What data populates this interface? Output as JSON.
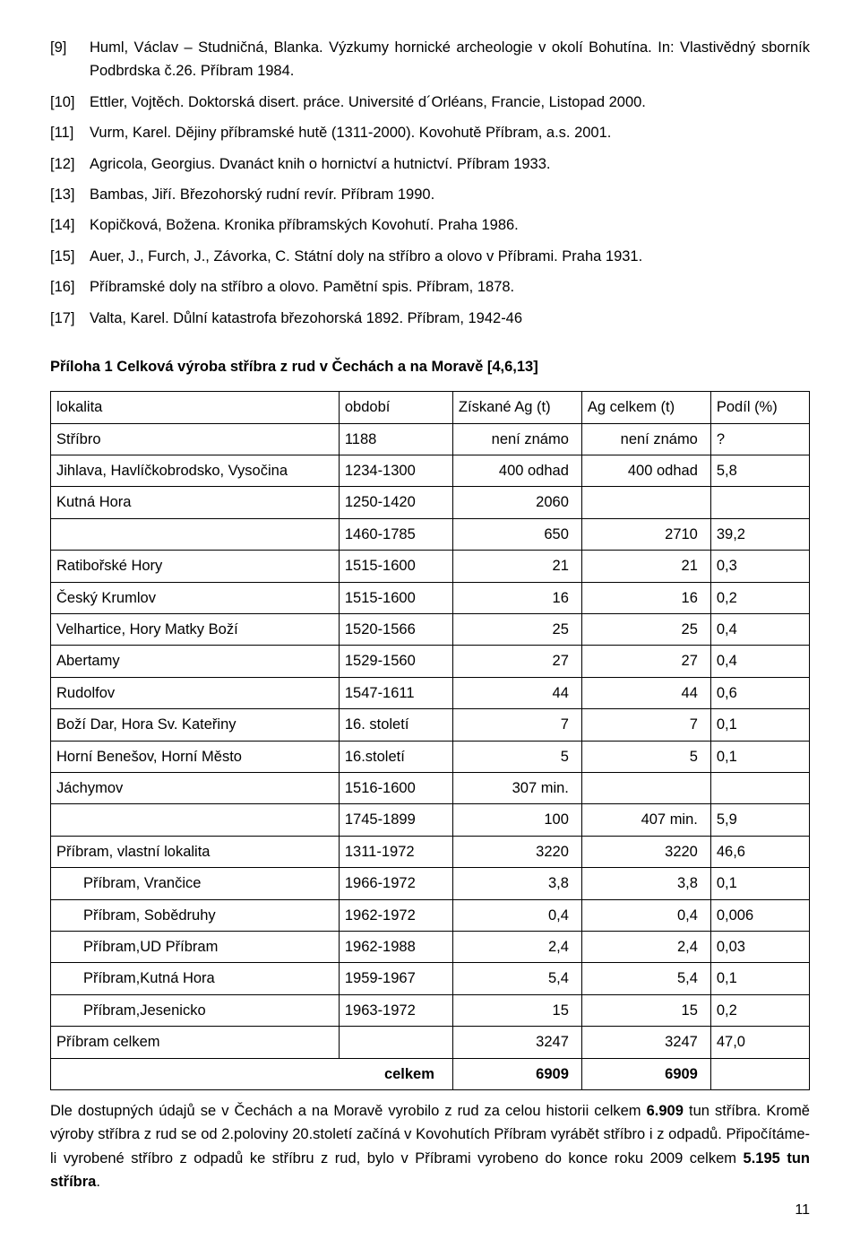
{
  "refs": [
    {
      "num": "[9]",
      "text": "Huml, Václav – Studničná, Blanka. Výzkumy hornické archeologie v okolí Bohutína. In: Vlastivědný sborník Podbrdska č.26. Příbram 1984."
    },
    {
      "num": "[10]",
      "text": "Ettler, Vojtěch. Doktorská disert. práce. Université d´Orléans, Francie, Listopad 2000."
    },
    {
      "num": "[11]",
      "text": "Vurm, Karel. Dějiny příbramské hutě (1311-2000). Kovohutě Příbram, a.s. 2001."
    },
    {
      "num": "[12]",
      "text": "Agricola, Georgius. Dvanáct knih o hornictví a hutnictví. Příbram 1933."
    },
    {
      "num": "[13]",
      "text": "Bambas, Jiří. Březohorský rudní revír. Příbram 1990."
    },
    {
      "num": "[14]",
      "text": "Kopičková, Božena. Kronika příbramských Kovohutí. Praha 1986."
    },
    {
      "num": "[15]",
      "text": "Auer, J., Furch, J., Závorka, C. Státní doly na stříbro a olovo v Příbrami. Praha 1931."
    },
    {
      "num": "[16]",
      "text": "Příbramské doly na stříbro a olovo. Pamětní spis. Příbram, 1878."
    },
    {
      "num": "[17]",
      "text": "Valta, Karel. Důlní katastrofa březohorská 1892. Příbram, 1942-46"
    }
  ],
  "attach_title": "Příloha 1 Celková výroba stříbra z rud v Čechách a na Moravě [4,6,13]",
  "hdr": {
    "loc": "lokalita",
    "period": "období",
    "ag": "Získané Ag (t)",
    "agtot": "Ag celkem (t)",
    "share": "Podíl (%)"
  },
  "rows": [
    {
      "loc": "Stříbro",
      "period": "1188",
      "ag": "není známo",
      "agtot": "není známo",
      "share": "?"
    },
    {
      "loc": "Jihlava, Havlíčkobrodsko, Vysočina",
      "period": "1234-1300",
      "ag": "400 odhad",
      "agtot": "400 odhad",
      "share": "5,8"
    },
    {
      "loc": "Kutná Hora",
      "period": "1250-1420",
      "ag": "2060",
      "agtot": "",
      "share": ""
    },
    {
      "loc": "",
      "period": "1460-1785",
      "ag": "650",
      "agtot": "2710",
      "share": "39,2"
    },
    {
      "loc": "Ratibořské Hory",
      "period": "1515-1600",
      "ag": "21",
      "agtot": "21",
      "share": "0,3"
    },
    {
      "loc": "Český Krumlov",
      "period": "1515-1600",
      "ag": "16",
      "agtot": "16",
      "share": "0,2"
    },
    {
      "loc": "Velhartice, Hory Matky Boží",
      "period": "1520-1566",
      "ag": "25",
      "agtot": "25",
      "share": "0,4"
    },
    {
      "loc": "Abertamy",
      "period": "1529-1560",
      "ag": "27",
      "agtot": "27",
      "share": "0,4"
    },
    {
      "loc": "Rudolfov",
      "period": "1547-1611",
      "ag": "44",
      "agtot": "44",
      "share": "0,6"
    },
    {
      "loc": "Boží Dar, Hora Sv. Kateřiny",
      "period": "16. století",
      "ag": "7",
      "agtot": "7",
      "share": "0,1"
    },
    {
      "loc": "Horní Benešov, Horní Město",
      "period": "16.století",
      "ag": "5",
      "agtot": "5",
      "share": "0,1"
    },
    {
      "loc": "Jáchymov",
      "period": "1516-1600",
      "ag": "307 min.",
      "agtot": "",
      "share": ""
    },
    {
      "loc": "",
      "period": "1745-1899",
      "ag": "100",
      "agtot": "407 min.",
      "share": "5,9"
    },
    {
      "loc": "Příbram, vlastní lokalita",
      "period": "1311-1972",
      "ag": "3220",
      "agtot": "3220",
      "share": "46,6"
    },
    {
      "loc": "Příbram, Vrančice",
      "period": "1966-1972",
      "ag": "3,8",
      "agtot": "3,8",
      "share": "0,1",
      "sub": true
    },
    {
      "loc": "Příbram, Sobědruhy",
      "period": "1962-1972",
      "ag": "0,4",
      "agtot": "0,4",
      "share": "0,006",
      "sub": true
    },
    {
      "loc": "Příbram,UD Příbram",
      "period": "1962-1988",
      "ag": "2,4",
      "agtot": "2,4",
      "share": "0,03",
      "sub": true
    },
    {
      "loc": "Příbram,Kutná Hora",
      "period": "1959-1967",
      "ag": "5,4",
      "agtot": "5,4",
      "share": "0,1",
      "sub": true
    },
    {
      "loc": "Příbram,Jesenicko",
      "period": "1963-1972",
      "ag": "15",
      "agtot": "15",
      "share": "0,2",
      "sub": true
    },
    {
      "loc": "Příbram celkem",
      "period": "",
      "ag": "3247",
      "agtot": "3247",
      "share": "47,0"
    }
  ],
  "sum": {
    "label": "celkem",
    "ag": "6909",
    "agtot": "6909",
    "share": ""
  },
  "footer_parts": {
    "p1a": "Dle dostupných údajů se v Čechách a na Moravě vyrobilo z rud za celou historii celkem ",
    "p1b": "6.909",
    "p1c": " tun stříbra. Kromě výroby stříbra z rud se od 2.poloviny 20.století začíná v Kovohutích Příbram vyrábět stříbro i z odpadů. Připočítáme-li vyrobené stříbro z odpadů ke stříbru z rud, bylo v Příbrami vyrobeno do konce roku 2009 celkem ",
    "p1d": "5.195 tun stříbra",
    "p1e": "."
  },
  "page_num": "11"
}
